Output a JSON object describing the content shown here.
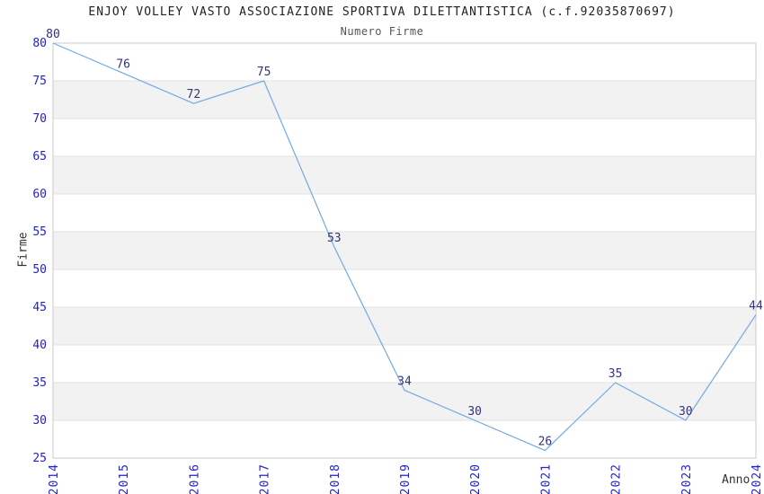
{
  "chart_data": {
    "type": "line",
    "title": "ENJOY VOLLEY VASTO ASSOCIAZIONE SPORTIVA DILETTANTISTICA (c.f.92035870697)",
    "subtitle": "Numero Firme",
    "xlabel": "Anno",
    "ylabel": "Firme",
    "categories": [
      "2014",
      "2015",
      "2016",
      "2017",
      "2018",
      "2019",
      "2020",
      "2021",
      "2022",
      "2023",
      "2024"
    ],
    "series": [
      {
        "name": "Numero Firme",
        "values": [
          80,
          76,
          72,
          75,
          53,
          34,
          30,
          26,
          35,
          30,
          44
        ]
      }
    ],
    "data_labels_shown": true,
    "ylim": [
      25,
      80
    ],
    "yticks": [
      25,
      30,
      35,
      40,
      45,
      50,
      55,
      60,
      65,
      70,
      75,
      80
    ],
    "grid": "horizontal-alternating-bands",
    "legend": "none",
    "markers": "none",
    "colors": {
      "line": "#74a9e4",
      "tick_label": "#2222cc",
      "data_label": "#333377",
      "band": "#f2f2f2",
      "gridline": "#e3e3e3",
      "spine": "#c9c9c9",
      "title": "#222222",
      "subtitle": "#555555",
      "axis_label": "#333333",
      "background": "#ffffff"
    }
  }
}
